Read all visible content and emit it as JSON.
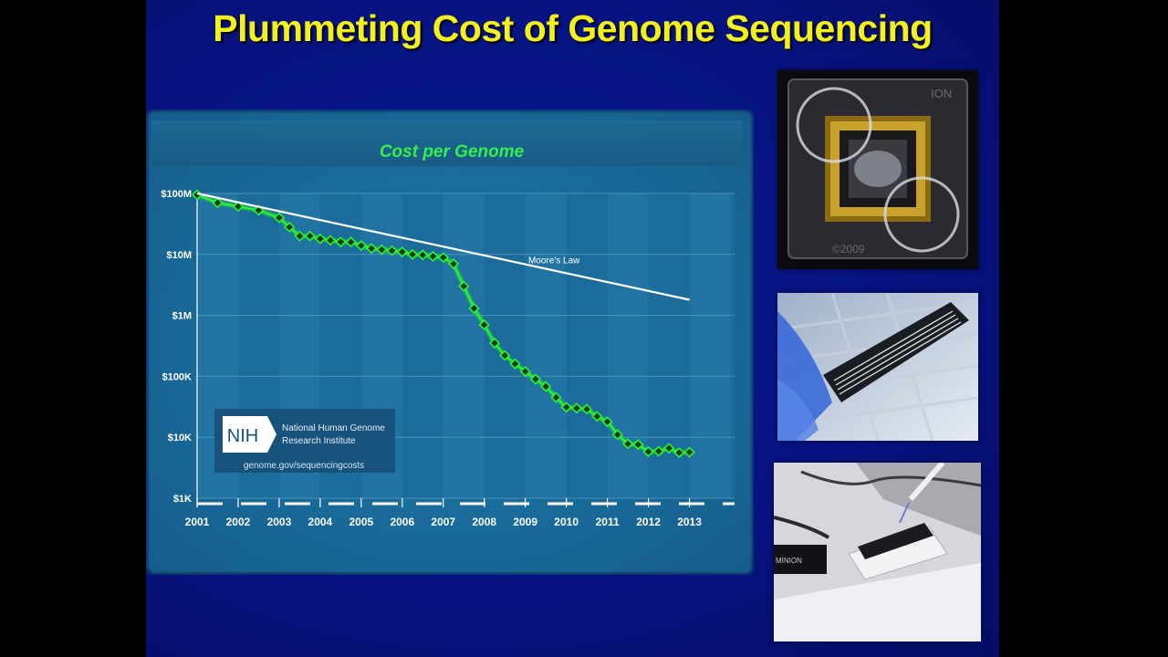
{
  "slide": {
    "title": "Plummeting Cost of Genome Sequencing"
  },
  "chart_data": {
    "type": "line",
    "title": "Cost per Genome",
    "scale": "log",
    "ylim": [
      1000,
      100000000
    ],
    "y_ticks": [
      {
        "value": 100000000,
        "label": "$100M"
      },
      {
        "value": 10000000,
        "label": "$10M"
      },
      {
        "value": 1000000,
        "label": "$1M"
      },
      {
        "value": 100000,
        "label": "$100K"
      },
      {
        "value": 10000,
        "label": "$10K"
      },
      {
        "value": 1000,
        "label": "$1K"
      }
    ],
    "xlim": [
      2001.0,
      2014.1
    ],
    "x_ticks": [
      "2001",
      "2002",
      "2003",
      "2004",
      "2005",
      "2006",
      "2007",
      "2008",
      "2009",
      "2010",
      "2011",
      "2012",
      "2013"
    ],
    "series": [
      {
        "name": "",
        "color": "#2cf52c",
        "points": [
          [
            2001.0,
            95000000
          ],
          [
            2001.5,
            70000000
          ],
          [
            2002.0,
            61000000
          ],
          [
            2002.5,
            53000000
          ],
          [
            2003.0,
            40000000
          ],
          [
            2003.25,
            28000000
          ],
          [
            2003.5,
            20000000
          ],
          [
            2003.75,
            20000000
          ],
          [
            2004.0,
            18000000
          ],
          [
            2004.25,
            17000000
          ],
          [
            2004.5,
            16000000
          ],
          [
            2004.75,
            16000000
          ],
          [
            2005.0,
            14000000
          ],
          [
            2005.25,
            12500000
          ],
          [
            2005.5,
            12000000
          ],
          [
            2005.75,
            11500000
          ],
          [
            2006.0,
            11000000
          ],
          [
            2006.25,
            10000000
          ],
          [
            2006.5,
            9800000
          ],
          [
            2006.75,
            9300000
          ],
          [
            2007.0,
            8900000
          ],
          [
            2007.25,
            7000000
          ],
          [
            2007.5,
            3000000
          ],
          [
            2007.75,
            1300000
          ],
          [
            2008.0,
            700000
          ],
          [
            2008.25,
            350000
          ],
          [
            2008.5,
            220000
          ],
          [
            2008.75,
            160000
          ],
          [
            2009.0,
            120000
          ],
          [
            2009.25,
            90000
          ],
          [
            2009.5,
            68000
          ],
          [
            2009.75,
            45000
          ],
          [
            2010.0,
            31000
          ],
          [
            2010.25,
            30000
          ],
          [
            2010.5,
            29000
          ],
          [
            2010.75,
            22000
          ],
          [
            2011.0,
            18000
          ],
          [
            2011.25,
            11000
          ],
          [
            2011.5,
            7800
          ],
          [
            2011.75,
            7600
          ],
          [
            2012.0,
            5800
          ],
          [
            2012.25,
            5900
          ],
          [
            2012.5,
            6600
          ],
          [
            2012.75,
            5600
          ],
          [
            2013.0,
            5700
          ]
        ]
      },
      {
        "name": "Moore's Law",
        "color": "#ffffff",
        "points": [
          [
            2001.0,
            100000000
          ],
          [
            2013.0,
            1800000
          ]
        ]
      }
    ],
    "grid": true,
    "background": "#1c6f9e"
  },
  "logo": {
    "mark": "NIH",
    "line1": "National Human Genome",
    "line2": "Research Institute",
    "url": "genome.gov/sequencingcosts"
  },
  "photos": {
    "chip_text_top": "ION",
    "chip_text_bottom": "©2009",
    "minion_label": "MINION"
  }
}
